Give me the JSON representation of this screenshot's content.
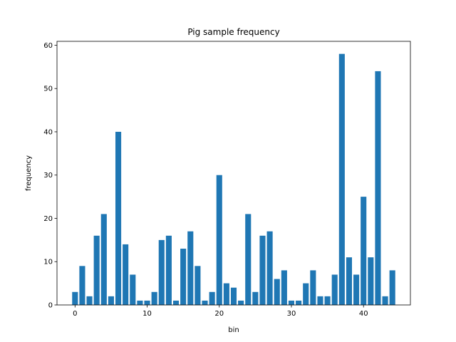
{
  "chart_data": {
    "type": "bar",
    "title": "Pig sample frequency",
    "xlabel": "bin",
    "ylabel": "frequency",
    "x": [
      0,
      1,
      2,
      3,
      4,
      5,
      6,
      7,
      8,
      9,
      10,
      11,
      12,
      13,
      14,
      15,
      16,
      17,
      18,
      19,
      20,
      21,
      22,
      23,
      24,
      25,
      26,
      27,
      28,
      29,
      30,
      31,
      32,
      33,
      34,
      35,
      36,
      37,
      38,
      39,
      40,
      41,
      42,
      43,
      44
    ],
    "values": [
      3,
      9,
      2,
      16,
      21,
      2,
      40,
      14,
      7,
      1,
      1,
      3,
      15,
      16,
      1,
      13,
      17,
      9,
      1,
      3,
      30,
      5,
      4,
      1,
      21,
      3,
      16,
      17,
      6,
      8,
      1,
      1,
      5,
      8,
      2,
      2,
      7,
      58,
      11,
      7,
      25,
      11,
      54,
      2,
      8
    ],
    "xlim": [
      -2.5,
      46.5
    ],
    "ylim": [
      0,
      60.9
    ],
    "xticks": [
      "0",
      "10",
      "20",
      "30",
      "40"
    ],
    "yticks": [
      "0",
      "10",
      "20",
      "30",
      "40",
      "50",
      "60"
    ],
    "bar_color": "#1f77b4",
    "grid": false
  }
}
